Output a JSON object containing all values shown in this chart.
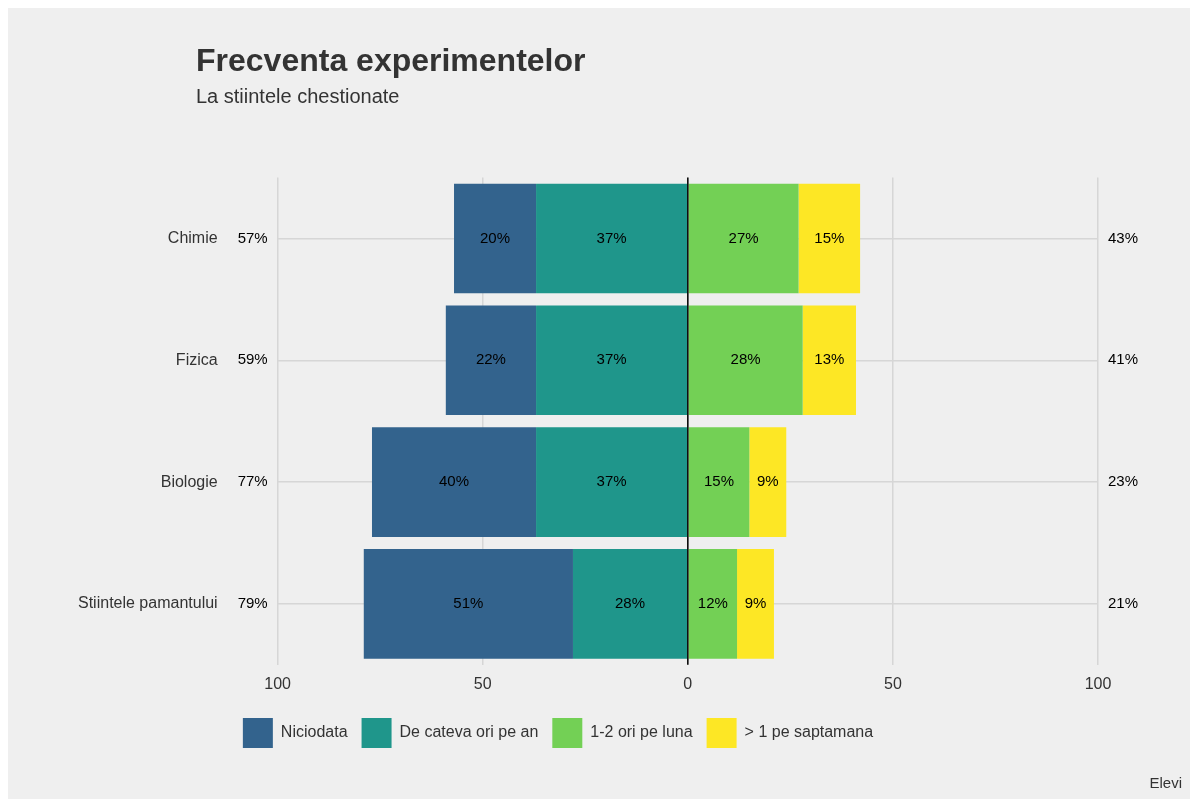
{
  "chart_data": {
    "type": "bar",
    "orientation": "horizontal",
    "title": "Frecventa experimentelor",
    "subtitle": "La stiintele chestionate",
    "categories": [
      "Chimie",
      "Fizica",
      "Biologie",
      "Stiintele pamantului"
    ],
    "series": [
      {
        "name": "Niciodata",
        "color": "#33638d",
        "values": [
          20,
          22,
          40,
          51
        ],
        "base": [
          -57,
          -59,
          -77,
          -79
        ],
        "value_labels": [
          "20%",
          "22%",
          "40%",
          "51%"
        ]
      },
      {
        "name": "De cateva ori pe an",
        "color": "#1f968b",
        "values": [
          37,
          37,
          37,
          28
        ],
        "base": [
          -37,
          -37,
          -37,
          -28
        ],
        "value_labels": [
          "37%",
          "37%",
          "37%",
          "28%"
        ]
      },
      {
        "name": "1-2 ori pe luna",
        "color": "#73d055",
        "values": [
          27,
          28,
          15,
          12
        ],
        "base": [
          0,
          0,
          0,
          0
        ],
        "value_labels": [
          "27%",
          "28%",
          "15%",
          "12%"
        ]
      },
      {
        "name": "> 1 pe saptamana",
        "color": "#fde725",
        "values": [
          15,
          13,
          9,
          9
        ],
        "base": [
          27,
          28,
          15,
          12
        ],
        "value_labels": [
          "15%",
          "13%",
          "9%",
          "9%"
        ]
      }
    ],
    "xlim": [
      -100,
      100
    ],
    "xticks": [
      {
        "value": -100,
        "label": "100"
      },
      {
        "value": -50,
        "label": "50"
      },
      0,
      50,
      100
    ],
    "ref_lines": [
      {
        "axis": "x",
        "value": 0,
        "color": "#000000"
      }
    ],
    "annotations": [
      "57%",
      "59%",
      "77%",
      "79%",
      "43%",
      "41%",
      "23%",
      "21%",
      "Elevi"
    ],
    "grid": true,
    "legend": "bottom"
  }
}
